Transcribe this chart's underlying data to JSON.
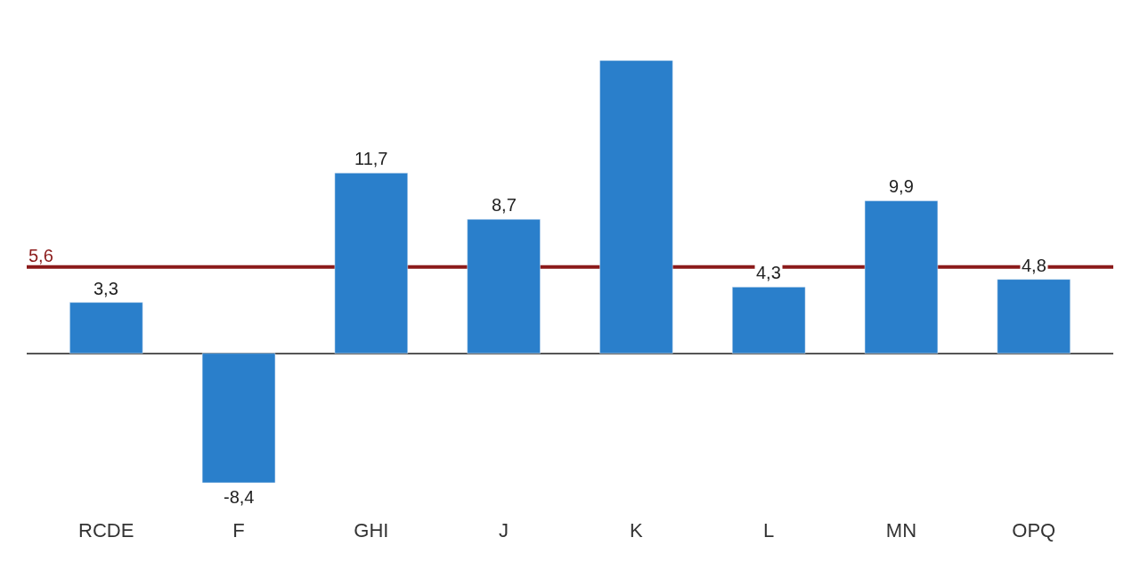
{
  "chart_data": {
    "type": "bar",
    "categories": [
      "RCDE",
      "F",
      "GHI",
      "J",
      "K",
      "L",
      "MN",
      "OPQ"
    ],
    "values": [
      3.3,
      -8.4,
      11.7,
      8.7,
      19,
      4.3,
      9.9,
      4.8
    ],
    "value_labels": [
      "3,3",
      "-8,4",
      "11,7",
      "8,7",
      null,
      "4,3",
      "9,9",
      "4,8"
    ],
    "color": "#2a7fcb",
    "ref_lines": [
      {
        "axis": "y",
        "value": 5.6,
        "label": "5,6",
        "color": "#8b1a1a"
      }
    ],
    "tick_labels": "x"
  }
}
